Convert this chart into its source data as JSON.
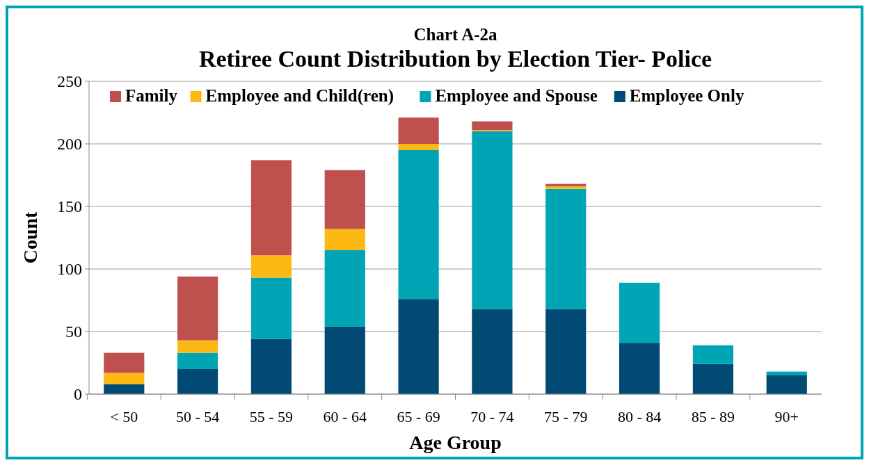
{
  "chart_data": {
    "type": "bar",
    "stacked": true,
    "title": "Chart A-2a",
    "subtitle": "Retiree Count Distribution by Election Tier- Police",
    "xlabel": "Age Group",
    "ylabel": "Count",
    "categories": [
      "< 50",
      "50 - 54",
      "55 - 59",
      "60 - 64",
      "65 - 69",
      "70 - 74",
      "75 - 79",
      "80 - 84",
      "85 - 89",
      "90+"
    ],
    "series": [
      {
        "name": "Employee Only",
        "color": "#004a74",
        "values": [
          8,
          20,
          44,
          54,
          76,
          68,
          68,
          41,
          24,
          15
        ]
      },
      {
        "name": "Employee and Spouse",
        "color": "#00a5b5",
        "values": [
          0,
          13,
          49,
          61,
          119,
          142,
          96,
          48,
          15,
          3
        ]
      },
      {
        "name": "Employee and Child(ren)",
        "color": "#fdb913",
        "values": [
          9,
          10,
          18,
          17,
          5,
          1,
          2,
          0,
          0,
          0
        ]
      },
      {
        "name": "Family",
        "color": "#c0504d",
        "values": [
          16,
          51,
          76,
          47,
          21,
          7,
          2,
          0,
          0,
          0
        ]
      }
    ],
    "ylim": [
      0,
      250
    ],
    "yticks": [
      0,
      50,
      100,
      150,
      200,
      250
    ],
    "grid": "y",
    "legend": "top"
  }
}
